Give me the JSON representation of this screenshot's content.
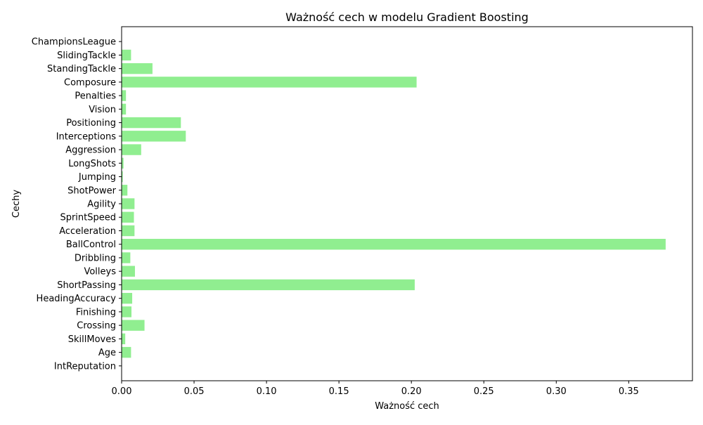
{
  "chart_data": {
    "type": "bar",
    "orientation": "horizontal",
    "title": "Ważność cech w modelu Gradient Boosting",
    "xlabel": "Ważność cech",
    "ylabel": "Cechy",
    "bar_color": "#90ee90",
    "xlim": [
      0,
      0.394
    ],
    "xticks": [
      "0.00",
      "0.05",
      "0.10",
      "0.15",
      "0.20",
      "0.25",
      "0.30",
      "0.35"
    ],
    "grid": false,
    "categories": [
      "IntReputation",
      "Age",
      "SkillMoves",
      "Crossing",
      "Finishing",
      "HeadingAccuracy",
      "ShortPassing",
      "Volleys",
      "Dribbling",
      "BallControl",
      "Acceleration",
      "SprintSpeed",
      "Agility",
      "ShotPower",
      "Jumping",
      "LongShots",
      "Aggression",
      "Interceptions",
      "Positioning",
      "Vision",
      "Penalties",
      "Composure",
      "StandingTackle",
      "SlidingTackle",
      "ChampionsLeague"
    ],
    "values": [
      0.0,
      0.0065,
      0.0025,
      0.0158,
      0.0068,
      0.0073,
      0.2023,
      0.0092,
      0.006,
      0.3755,
      0.0089,
      0.0085,
      0.0089,
      0.004,
      0.0008,
      0.0013,
      0.0135,
      0.0443,
      0.0409,
      0.003,
      0.003,
      0.2036,
      0.0213,
      0.0065,
      0.0
    ]
  }
}
